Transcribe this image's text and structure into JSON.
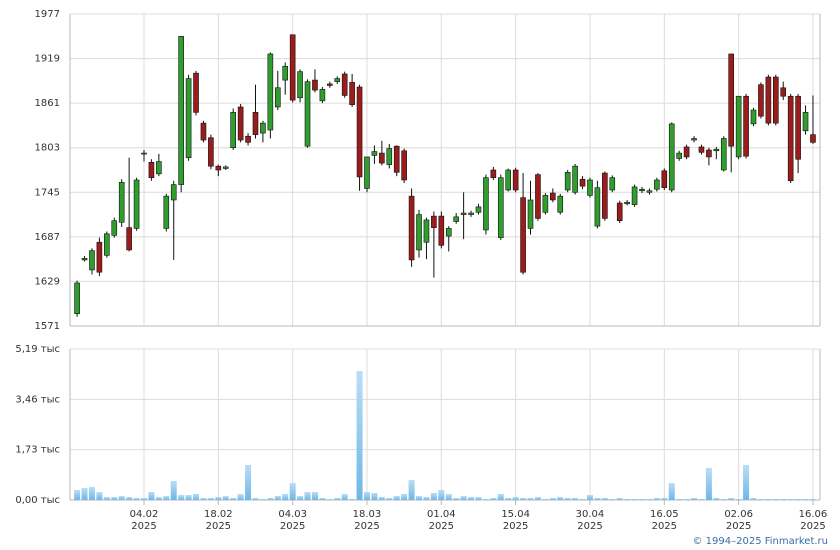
{
  "chart_data": [
    {
      "type": "candlestick",
      "up_color": "#2f9e2f",
      "down_color": "#9b1c1c",
      "wick_color": "#111111",
      "grid": true,
      "ylim": [
        1571,
        1977
      ],
      "yticks": [
        1571,
        1629,
        1687,
        1745,
        1803,
        1861,
        1919,
        1977
      ],
      "open": [
        1587,
        1657,
        1644,
        1680,
        1663,
        1689,
        1706,
        1699,
        1698,
        1795,
        1784,
        1769,
        1698,
        1735,
        1755,
        1790,
        1900,
        1835,
        1816,
        1779,
        1776,
        1803,
        1856,
        1818,
        1849,
        1822,
        1826,
        1856,
        1891,
        1950,
        1868,
        1805,
        1891,
        1864,
        1886,
        1889,
        1899,
        1888,
        1882,
        1750,
        1793,
        1796,
        1781,
        1805,
        1799,
        1740,
        1670,
        1680,
        1714,
        1714,
        1688,
        1707,
        1716,
        1716,
        1719,
        1696,
        1774,
        1686,
        1748,
        1774,
        1738,
        1698,
        1768,
        1719,
        1744,
        1719,
        1748,
        1745,
        1762,
        1741,
        1701,
        1770,
        1748,
        1731,
        1730,
        1729,
        1747,
        1745,
        1749,
        1773,
        1748,
        1789,
        1804,
        1813,
        1804,
        1800,
        1799,
        1774,
        1925,
        1791,
        1870,
        1834,
        1885,
        1895,
        1895,
        1881,
        1870,
        1870,
        1825,
        1820
      ],
      "high": [
        1630,
        1662,
        1672,
        1686,
        1694,
        1712,
        1762,
        1790,
        1764,
        1800,
        1788,
        1795,
        1743,
        1760,
        1948,
        1898,
        1903,
        1838,
        1820,
        1781,
        1780,
        1854,
        1860,
        1822,
        1885,
        1838,
        1927,
        1903,
        1914,
        1950,
        1905,
        1892,
        1905,
        1882,
        1889,
        1896,
        1902,
        1899,
        1885,
        1791,
        1806,
        1812,
        1808,
        1806,
        1802,
        1750,
        1722,
        1712,
        1720,
        1720,
        1701,
        1718,
        1745,
        1721,
        1730,
        1768,
        1778,
        1768,
        1776,
        1777,
        1770,
        1760,
        1770,
        1744,
        1750,
        1743,
        1774,
        1782,
        1766,
        1764,
        1760,
        1772,
        1767,
        1734,
        1735,
        1755,
        1752,
        1750,
        1764,
        1776,
        1836,
        1799,
        1807,
        1818,
        1807,
        1803,
        1804,
        1818,
        1925,
        1870,
        1873,
        1855,
        1888,
        1898,
        1898,
        1889,
        1873,
        1873,
        1858,
        1871
      ],
      "low": [
        1583,
        1655,
        1638,
        1636,
        1660,
        1686,
        1700,
        1668,
        1695,
        1785,
        1760,
        1766,
        1694,
        1657,
        1745,
        1786,
        1845,
        1810,
        1775,
        1766,
        1774,
        1800,
        1810,
        1806,
        1815,
        1810,
        1815,
        1852,
        1872,
        1862,
        1862,
        1803,
        1875,
        1861,
        1881,
        1886,
        1868,
        1856,
        1747,
        1745,
        1782,
        1780,
        1776,
        1766,
        1757,
        1648,
        1660,
        1658,
        1634,
        1672,
        1668,
        1704,
        1684,
        1713,
        1716,
        1690,
        1761,
        1683,
        1746,
        1745,
        1638,
        1690,
        1708,
        1716,
        1732,
        1716,
        1745,
        1742,
        1749,
        1738,
        1698,
        1708,
        1745,
        1705,
        1728,
        1726,
        1744,
        1742,
        1746,
        1748,
        1745,
        1786,
        1788,
        1810,
        1794,
        1780,
        1788,
        1772,
        1771,
        1788,
        1789,
        1831,
        1841,
        1832,
        1832,
        1865,
        1757,
        1770,
        1820,
        1808
      ],
      "close": [
        1627,
        1659,
        1669,
        1641,
        1691,
        1708,
        1758,
        1670,
        1761,
        1796,
        1764,
        1785,
        1740,
        1755,
        1948,
        1893,
        1849,
        1813,
        1779,
        1774,
        1778,
        1849,
        1813,
        1810,
        1820,
        1835,
        1925,
        1881,
        1909,
        1865,
        1902,
        1889,
        1878,
        1879,
        1884,
        1893,
        1871,
        1859,
        1765,
        1791,
        1798,
        1783,
        1802,
        1771,
        1761,
        1657,
        1716,
        1709,
        1699,
        1676,
        1698,
        1713,
        1718,
        1718,
        1726,
        1764,
        1764,
        1764,
        1774,
        1748,
        1641,
        1735,
        1711,
        1741,
        1735,
        1740,
        1771,
        1779,
        1753,
        1761,
        1751,
        1711,
        1764,
        1708,
        1732,
        1752,
        1749,
        1747,
        1761,
        1751,
        1834,
        1796,
        1791,
        1815,
        1797,
        1791,
        1801,
        1815,
        1805,
        1870,
        1792,
        1852,
        1844,
        1835,
        1835,
        1870,
        1760,
        1788,
        1849,
        1810
      ]
    },
    {
      "type": "bar",
      "color": "#8cc8ee",
      "grid": true,
      "ylim": [
        0,
        5190
      ],
      "yticks": [
        {
          "value": 0,
          "label": "0,00 тыс"
        },
        {
          "value": 1730,
          "label": "1,73 тыс"
        },
        {
          "value": 3460,
          "label": "3,46 тыс"
        },
        {
          "value": 5190,
          "label": "5,19 тыс"
        }
      ],
      "categories": [
        null,
        null,
        null,
        null,
        null,
        null,
        null,
        null,
        null,
        [
          "04.02",
          "2025"
        ],
        null,
        null,
        null,
        null,
        null,
        null,
        null,
        null,
        null,
        [
          "18.02",
          "2025"
        ],
        null,
        null,
        null,
        null,
        null,
        null,
        null,
        null,
        null,
        [
          "04.03",
          "2025"
        ],
        null,
        null,
        null,
        null,
        null,
        null,
        null,
        null,
        null,
        [
          "18.03",
          "2025"
        ],
        null,
        null,
        null,
        null,
        null,
        null,
        null,
        null,
        null,
        [
          "01.04",
          "2025"
        ],
        null,
        null,
        null,
        null,
        null,
        null,
        null,
        null,
        null,
        [
          "15.04",
          "2025"
        ],
        null,
        null,
        null,
        null,
        null,
        null,
        null,
        null,
        null,
        [
          "30.04",
          "2025"
        ],
        null,
        null,
        null,
        null,
        null,
        null,
        null,
        null,
        null,
        [
          "16.05",
          "2025"
        ],
        null,
        null,
        null,
        null,
        null,
        null,
        null,
        null,
        null,
        [
          "02.06",
          "2025"
        ],
        null,
        null,
        null,
        null,
        null,
        null,
        null,
        null,
        null,
        [
          "16.06",
          "2025"
        ]
      ],
      "values": [
        344,
        412,
        447,
        275,
        103,
        103,
        137,
        103,
        69,
        69,
        275,
        103,
        137,
        653,
        172,
        172,
        206,
        69,
        69,
        103,
        137,
        69,
        206,
        1203,
        69,
        34,
        69,
        137,
        206,
        584,
        137,
        275,
        275,
        69,
        34,
        69,
        206,
        34,
        4434,
        275,
        241,
        103,
        69,
        137,
        206,
        687,
        137,
        103,
        241,
        344,
        206,
        69,
        137,
        103,
        103,
        34,
        69,
        206,
        69,
        103,
        69,
        69,
        103,
        34,
        69,
        103,
        69,
        69,
        34,
        172,
        69,
        69,
        34,
        69,
        34,
        34,
        34,
        34,
        69,
        69,
        584,
        34,
        34,
        69,
        34,
        1100,
        69,
        34,
        69,
        34,
        1203,
        69,
        34,
        34,
        34,
        34,
        34,
        34,
        34,
        34
      ]
    }
  ],
  "footer": "© 1994–2025 Finmarket.ru"
}
